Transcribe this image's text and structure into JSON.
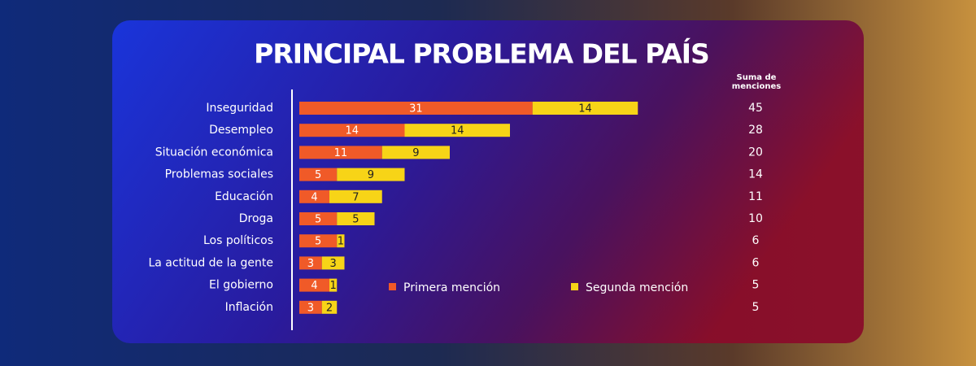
{
  "chart_data": {
    "type": "stacked_bar_horizontal",
    "title": "PRINCIPAL PROBLEMA DEL PAÍS",
    "categories": [
      "Inseguridad",
      "Desempleo",
      "Situación económica",
      "Problemas sociales",
      "Educación",
      "Droga",
      "Los políticos",
      "La actitud de la gente",
      "El gobierno",
      "Inflación"
    ],
    "series": [
      {
        "name": "Primera mención",
        "color": "#f05a28",
        "values": [
          31,
          14,
          11,
          5,
          4,
          5,
          5,
          3,
          4,
          3
        ]
      },
      {
        "name": "Segunda mención",
        "color": "#f7d417",
        "values": [
          14,
          14,
          9,
          9,
          7,
          5,
          1,
          3,
          1,
          2
        ]
      }
    ],
    "totals_label": "Suma de menciones",
    "totals": [
      45,
      28,
      20,
      14,
      11,
      10,
      6,
      6,
      5,
      5
    ]
  }
}
